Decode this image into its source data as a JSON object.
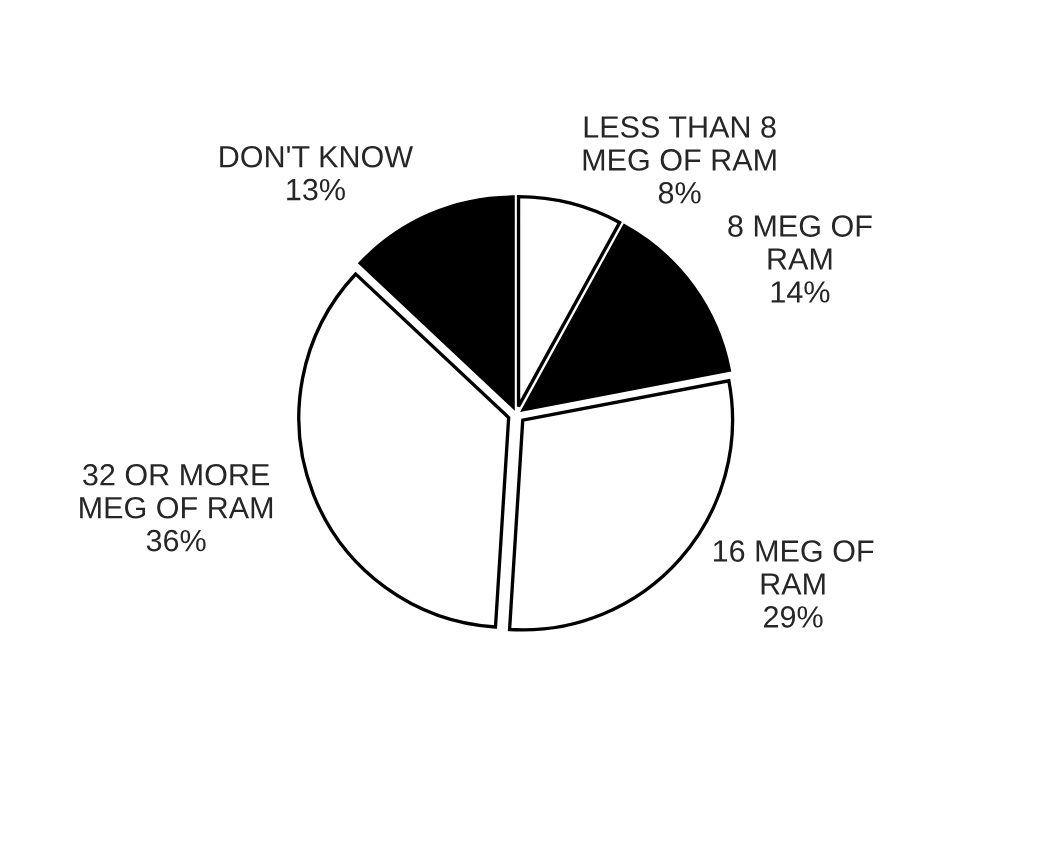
{
  "chart_data": {
    "type": "pie",
    "categories": [
      "LESS THAN 8\nMEG OF RAM",
      "8 MEG OF\nRAM",
      "16 MEG OF\nRAM",
      "32 OR MORE\nMEG OF RAM",
      "DON'T KNOW"
    ],
    "values": [
      8,
      14,
      29,
      36,
      13
    ],
    "value_labels": [
      "8%",
      "14%",
      "29%",
      "36%",
      "13%"
    ],
    "colors": [
      "#ffffff",
      "#000000",
      "#ffffff",
      "#ffffff",
      "#000000"
    ],
    "legend": false
  }
}
